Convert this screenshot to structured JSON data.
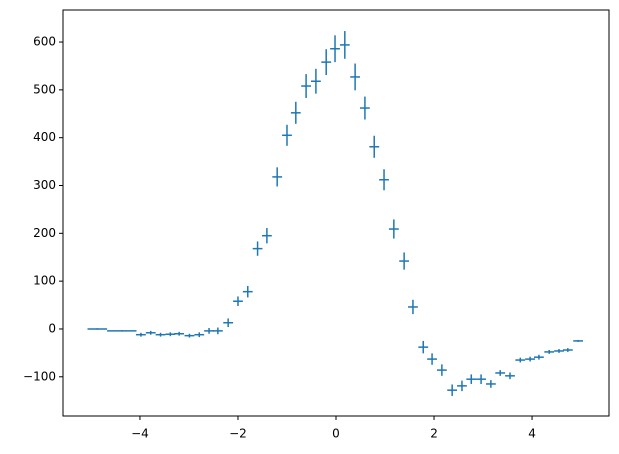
{
  "chart_data": {
    "type": "errorbar",
    "series": [
      {
        "color": "#1f77b4",
        "x": [
          -4.87,
          -4.37,
          -3.98,
          -3.78,
          -3.58,
          -3.38,
          -3.2,
          -2.99,
          -2.79,
          -2.59,
          -2.41,
          -2.2,
          -2.0,
          -1.8,
          -1.6,
          -1.41,
          -1.2,
          -1.0,
          -0.82,
          -0.61,
          -0.41,
          -0.2,
          -0.02,
          0.18,
          0.39,
          0.59,
          0.78,
          0.98,
          1.18,
          1.39,
          1.57,
          1.78,
          1.96,
          2.16,
          2.37,
          2.57,
          2.76,
          2.96,
          3.16,
          3.35,
          3.55,
          3.76,
          3.96,
          4.14,
          4.35,
          4.55,
          4.73,
          4.94
        ],
        "xerr": [
          0.2,
          0.3,
          0.1,
          0.1,
          0.1,
          0.1,
          0.1,
          0.1,
          0.1,
          0.1,
          0.1,
          0.1,
          0.1,
          0.1,
          0.1,
          0.1,
          0.1,
          0.1,
          0.1,
          0.1,
          0.1,
          0.1,
          0.1,
          0.1,
          0.1,
          0.1,
          0.1,
          0.1,
          0.1,
          0.1,
          0.1,
          0.1,
          0.1,
          0.1,
          0.1,
          0.1,
          0.1,
          0.1,
          0.1,
          0.1,
          0.1,
          0.1,
          0.1,
          0.1,
          0.1,
          0.1,
          0.1,
          0.1
        ],
        "values": [
          0,
          -4,
          -12,
          -8,
          -12,
          -11,
          -10,
          -14,
          -12,
          -4,
          -4,
          13,
          58,
          78,
          168,
          195,
          318,
          405,
          452,
          508,
          518,
          558,
          586,
          594,
          527,
          462,
          381,
          312,
          209,
          142,
          46,
          -38,
          -63,
          -86,
          -128,
          -119,
          -105,
          -105,
          -115,
          -92,
          -98,
          -65,
          -63,
          -59,
          -48,
          -46,
          -44,
          -25
        ],
        "yerr": [
          1.5,
          1.5,
          4,
          4,
          4,
          4,
          4,
          4,
          5,
          6,
          7,
          9,
          10,
          12,
          15,
          16,
          20,
          22,
          23,
          25,
          26,
          27,
          28,
          29,
          28,
          24,
          23,
          22,
          20,
          18,
          15,
          13,
          12,
          12,
          12,
          11,
          10,
          10,
          8,
          6,
          7,
          5,
          5,
          5,
          4,
          4,
          4,
          2
        ]
      }
    ],
    "xlim": [
      -5.57,
      5.57
    ],
    "ylim": [
      -182,
      667
    ],
    "xticks": [
      {
        "value": -4,
        "label": "−4"
      },
      {
        "value": -2,
        "label": "−2"
      },
      0,
      2,
      4
    ],
    "yticks": [
      {
        "value": -100,
        "label": "−100"
      },
      0,
      100,
      200,
      300,
      400,
      500,
      600
    ]
  }
}
